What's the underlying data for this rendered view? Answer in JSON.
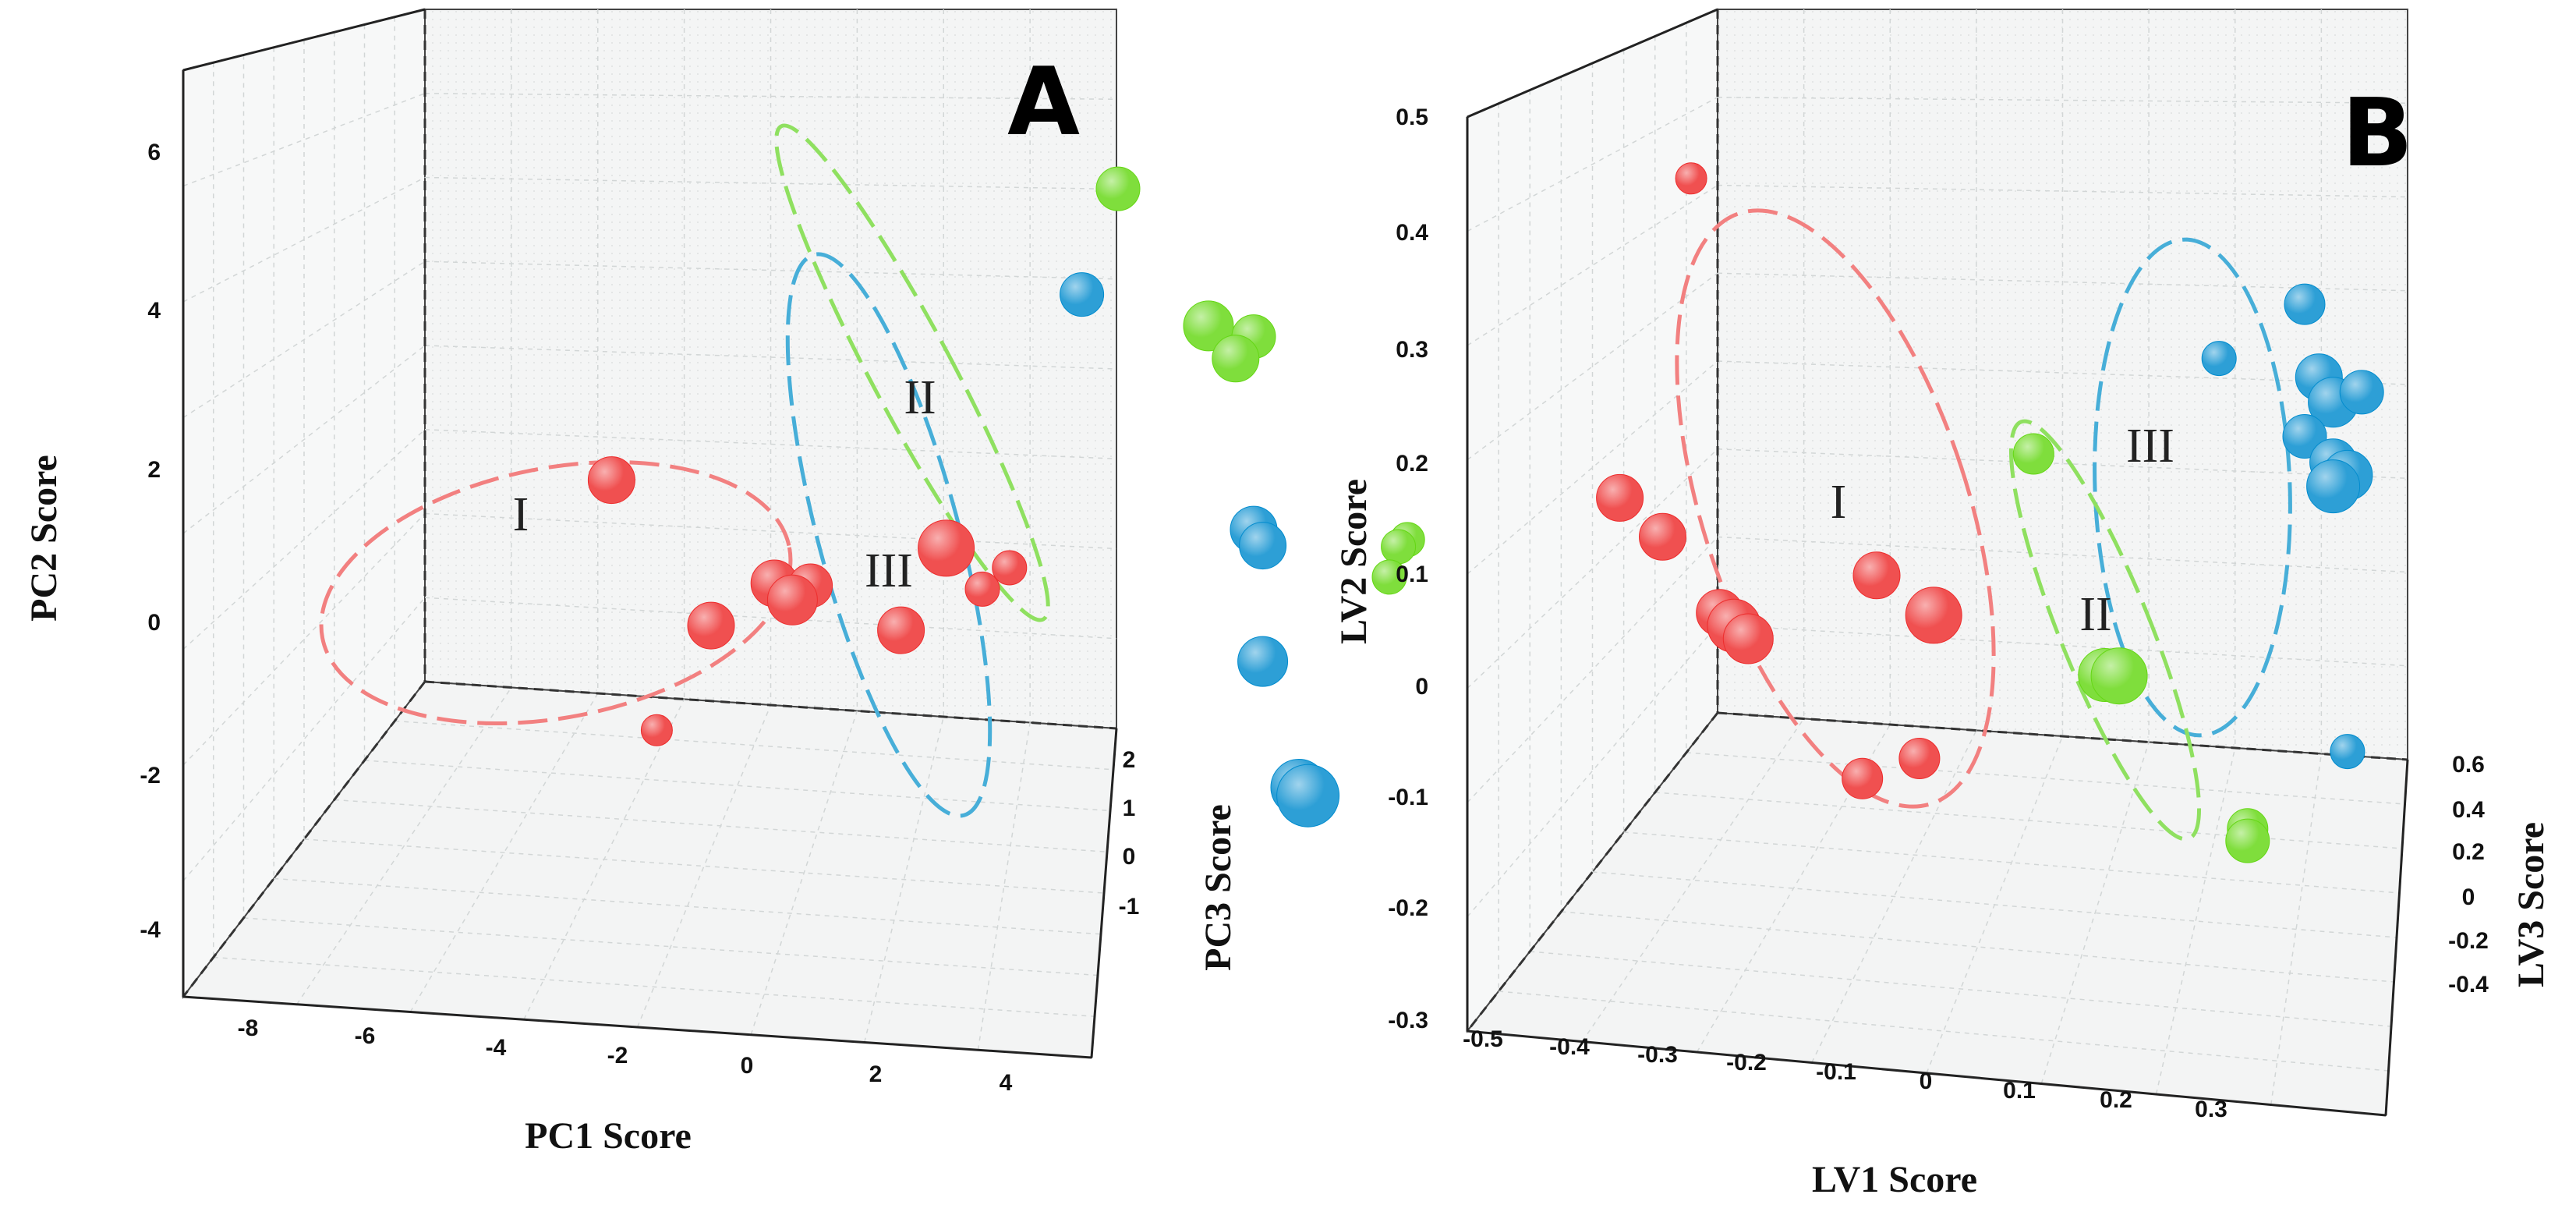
{
  "chart_data": [
    {
      "type": "scatter",
      "panel_label": "A",
      "xlabel": "PC1 Score",
      "ylabel": "PC2 Score",
      "zlabel": "PC3 Score",
      "x_ticks": [
        "-8",
        "-6",
        "-4",
        "-2",
        "0",
        "2",
        "4"
      ],
      "y_ticks": [
        "6",
        "4",
        "2",
        "0",
        "-2",
        "-4"
      ],
      "z_ticks": [
        "2",
        "1",
        "0",
        "-1"
      ],
      "cluster_labels": [
        "I",
        "II",
        "III"
      ],
      "colors": {
        "I": "#f05050",
        "II": "#7fde3c",
        "III": "#2d9fd6"
      },
      "ellipse_colors": {
        "I": "#f28080",
        "II": "#8fe060",
        "III": "#47aed8"
      },
      "grid": true,
      "series": [
        {
          "name": "I",
          "color": "#f05050",
          "points": [
            {
              "x": -4.6,
              "y": 2.0,
              "s": 30
            },
            {
              "x": -2.8,
              "y": 0.8,
              "s": 30
            },
            {
              "x": -2.4,
              "y": 0.8,
              "s": 28
            },
            {
              "x": -2.6,
              "y": 0.6,
              "s": 32
            },
            {
              "x": -3.5,
              "y": 0.2,
              "s": 30
            },
            {
              "x": -1.4,
              "y": 0.3,
              "s": 30
            },
            {
              "x": -0.9,
              "y": 1.4,
              "s": 36
            },
            {
              "x": -0.5,
              "y": 0.9,
              "s": 22
            },
            {
              "x": -0.2,
              "y": 1.2,
              "s": 22
            },
            {
              "x": -4.1,
              "y": -1.2,
              "s": 20
            }
          ]
        },
        {
          "name": "II",
          "color": "#7fde3c",
          "points": [
            {
              "x": 1.0,
              "y": 6.2,
              "s": 28
            },
            {
              "x": 2.0,
              "y": 4.5,
              "s": 32
            },
            {
              "x": 2.5,
              "y": 4.4,
              "s": 28
            },
            {
              "x": 2.3,
              "y": 4.1,
              "s": 30
            },
            {
              "x": 4.2,
              "y": 1.9,
              "s": 22
            },
            {
              "x": 4.1,
              "y": 1.8,
              "s": 22
            },
            {
              "x": 4.0,
              "y": 1.4,
              "s": 22
            }
          ]
        },
        {
          "name": "III",
          "color": "#2d9fd6",
          "points": [
            {
              "x": 0.6,
              "y": 4.8,
              "s": 28
            },
            {
              "x": 2.5,
              "y": 1.9,
              "s": 30
            },
            {
              "x": 2.6,
              "y": 1.7,
              "s": 30
            },
            {
              "x": 2.6,
              "y": 0.2,
              "s": 32
            },
            {
              "x": 3.0,
              "y": -1.4,
              "s": 36
            },
            {
              "x": 3.1,
              "y": -1.5,
              "s": 40
            }
          ]
        }
      ]
    },
    {
      "type": "scatter",
      "panel_label": "B",
      "xlabel": "LV1 Score",
      "ylabel": "LV2 Score",
      "zlabel": "LV3 Score",
      "x_ticks": [
        "-0.5",
        "-0.4",
        "-0.3",
        "-0.2",
        "-0.1",
        "0",
        "0.1",
        "0.2",
        "0.3"
      ],
      "y_ticks": [
        "0.5",
        "0.4",
        "0.3",
        "0.2",
        "0.1",
        "0",
        "-0.1",
        "-0.2",
        "-0.3"
      ],
      "z_ticks": [
        "0.6",
        "0.4",
        "0.2",
        "0",
        "-0.2",
        "-0.4"
      ],
      "cluster_labels": [
        "I",
        "II",
        "III"
      ],
      "colors": {
        "I": "#f05050",
        "II": "#7fde3c",
        "III": "#2d9fd6"
      },
      "ellipse_colors": {
        "I": "#f28080",
        "II": "#8fe060",
        "III": "#47aed8"
      },
      "grid": true,
      "series": [
        {
          "name": "I",
          "color": "#f05050",
          "points": [
            {
              "x": -0.23,
              "y": 0.39,
              "s": 20
            },
            {
              "x": -0.28,
              "y": 0.12,
              "s": 30
            },
            {
              "x": -0.25,
              "y": 0.09,
              "s": 30
            },
            {
              "x": -0.21,
              "y": 0.03,
              "s": 30
            },
            {
              "x": -0.2,
              "y": 0.02,
              "s": 34
            },
            {
              "x": -0.19,
              "y": 0.01,
              "s": 32
            },
            {
              "x": -0.1,
              "y": 0.07,
              "s": 30
            },
            {
              "x": -0.06,
              "y": 0.04,
              "s": 36
            },
            {
              "x": -0.11,
              "y": -0.1,
              "s": 26
            },
            {
              "x": -0.07,
              "y": -0.08,
              "s": 26
            }
          ]
        },
        {
          "name": "II",
          "color": "#7fde3c",
          "points": [
            {
              "x": 0.01,
              "y": 0.18,
              "s": 26
            },
            {
              "x": 0.06,
              "y": 0.0,
              "s": 34
            },
            {
              "x": 0.07,
              "y": 0.0,
              "s": 36
            },
            {
              "x": 0.16,
              "y": -0.12,
              "s": 26
            },
            {
              "x": 0.16,
              "y": -0.13,
              "s": 28
            }
          ]
        },
        {
          "name": "III",
          "color": "#2d9fd6",
          "points": [
            {
              "x": 0.14,
              "y": 0.27,
              "s": 22
            },
            {
              "x": 0.2,
              "y": 0.32,
              "s": 26
            },
            {
              "x": 0.21,
              "y": 0.26,
              "s": 30
            },
            {
              "x": 0.22,
              "y": 0.24,
              "s": 32
            },
            {
              "x": 0.24,
              "y": 0.25,
              "s": 28
            },
            {
              "x": 0.2,
              "y": 0.21,
              "s": 28
            },
            {
              "x": 0.22,
              "y": 0.19,
              "s": 30
            },
            {
              "x": 0.23,
              "y": 0.18,
              "s": 32
            },
            {
              "x": 0.22,
              "y": 0.17,
              "s": 34
            },
            {
              "x": 0.23,
              "y": -0.05,
              "s": 22
            }
          ]
        }
      ]
    }
  ]
}
